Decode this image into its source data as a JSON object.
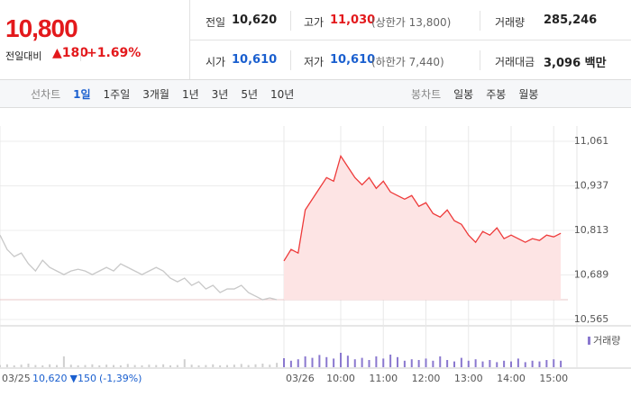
{
  "quote": {
    "price": "10,800",
    "change_label": "전일대비",
    "change": "▲180",
    "change_pct": "+1.69%"
  },
  "stats": {
    "prev": {
      "label": "전일",
      "value": "10,620"
    },
    "high": {
      "label": "고가",
      "value": "11,030",
      "note": "(상한가 13,800)"
    },
    "volume": {
      "label": "거래량",
      "value": "285,246"
    },
    "open": {
      "label": "시가",
      "value": "10,610"
    },
    "low": {
      "label": "저가",
      "value": "10,610",
      "note": "(하한가 7,440)"
    },
    "amount": {
      "label": "거래대금",
      "value": "3,096 백만"
    }
  },
  "tabs": {
    "line_label": "선차트",
    "line": [
      "1일",
      "1주일",
      "3개월",
      "1년",
      "3년",
      "5년",
      "10년"
    ],
    "candle_label": "봉차트",
    "candle": [
      "일봉",
      "주봉",
      "월봉"
    ]
  },
  "chart_data": {
    "type": "line",
    "categories": [
      "03/25",
      null,
      null,
      null,
      null,
      null,
      null,
      null,
      null,
      null,
      null,
      null,
      null,
      null,
      null,
      null,
      null,
      null,
      null,
      null,
      null,
      null,
      null,
      null,
      null,
      null,
      null,
      null,
      null,
      null,
      null,
      null,
      null,
      null,
      null,
      null,
      null,
      null,
      null,
      null,
      "03/26",
      null,
      null,
      null,
      null,
      null,
      null,
      null,
      "10:00",
      null,
      null,
      null,
      null,
      null,
      "11:00",
      null,
      null,
      null,
      null,
      null,
      "12:00",
      null,
      null,
      null,
      null,
      null,
      "13:00",
      null,
      null,
      null,
      null,
      null,
      "14:00",
      null,
      null,
      null,
      null,
      null,
      "15:00",
      null
    ],
    "series": [
      {
        "color": "#c8c8c8",
        "values": [
          10800,
          10760,
          10740,
          10750,
          10720,
          10700,
          10730,
          10710,
          10700,
          10690,
          10700,
          10705,
          10700,
          10690,
          10700,
          10710,
          10700,
          10720,
          10710,
          10700,
          10690,
          10700,
          10710,
          10700,
          10680,
          10670,
          10680,
          10660,
          10670,
          10650,
          10660,
          10640,
          10650,
          10650,
          10660,
          10640,
          10630,
          10620,
          10625,
          10620,
          null,
          null,
          null,
          null,
          null,
          null,
          null,
          null,
          null,
          null,
          null,
          null,
          null,
          null,
          null,
          null,
          null,
          null,
          null,
          null,
          null,
          null,
          null,
          null,
          null,
          null,
          null,
          null,
          null,
          null,
          null,
          null,
          null,
          null,
          null,
          null,
          null,
          null,
          null,
          null
        ]
      },
      {
        "color": "#ee3a3a",
        "fill": "#fde4e4",
        "values": [
          null,
          null,
          null,
          null,
          null,
          null,
          null,
          null,
          null,
          null,
          null,
          null,
          null,
          null,
          null,
          null,
          null,
          null,
          null,
          null,
          null,
          null,
          null,
          null,
          null,
          null,
          null,
          null,
          null,
          null,
          null,
          null,
          null,
          null,
          null,
          null,
          null,
          null,
          null,
          null,
          10728,
          10760,
          10750,
          10870,
          10900,
          10930,
          10960,
          10950,
          11020,
          10990,
          10960,
          10940,
          10960,
          10930,
          10950,
          10920,
          10910,
          10900,
          10910,
          10880,
          10890,
          10860,
          10850,
          10870,
          10840,
          10830,
          10800,
          10780,
          10810,
          10800,
          10820,
          10790,
          10800,
          10790,
          10780,
          10790,
          10785,
          10800,
          10795,
          10805
        ]
      },
      {
        "color": "#cfcfcf",
        "axis": "y2",
        "values": [
          6,
          8,
          5,
          7,
          10,
          6,
          5,
          8,
          6,
          30,
          7,
          5,
          6,
          8,
          5,
          7,
          6,
          5,
          9,
          6,
          5,
          7,
          6,
          8,
          5,
          6,
          22,
          7,
          5,
          6,
          8,
          5,
          6,
          7,
          9,
          6,
          8,
          10,
          7,
          12,
          null,
          null,
          null,
          null,
          null,
          null,
          null,
          null,
          null,
          null,
          null,
          null,
          null,
          null,
          null,
          null,
          null,
          null,
          null,
          null,
          null,
          null,
          null,
          null,
          null,
          null,
          null,
          null,
          null,
          null,
          null,
          null,
          null,
          null,
          null,
          null,
          null,
          null,
          null,
          null
        ]
      },
      {
        "name": "거래량",
        "color": "#8a78cf",
        "axis": "y2",
        "values": [
          null,
          null,
          null,
          null,
          null,
          null,
          null,
          null,
          null,
          null,
          null,
          null,
          null,
          null,
          null,
          null,
          null,
          null,
          null,
          null,
          null,
          null,
          null,
          null,
          null,
          null,
          null,
          null,
          null,
          null,
          null,
          null,
          null,
          null,
          null,
          null,
          null,
          null,
          null,
          null,
          25,
          18,
          22,
          30,
          26,
          34,
          28,
          24,
          40,
          32,
          22,
          26,
          20,
          30,
          24,
          35,
          28,
          18,
          22,
          20,
          24,
          18,
          30,
          20,
          16,
          26,
          18,
          22,
          16,
          20,
          14,
          18,
          16,
          24,
          14,
          18,
          16,
          20,
          22,
          18
        ]
      }
    ],
    "ylim": [
      10565,
      11061
    ],
    "yticks": [
      {
        "value": 11061,
        "label": "11,061"
      },
      {
        "value": 10937,
        "label": "10,937"
      },
      {
        "value": 10813,
        "label": "10,813"
      },
      {
        "value": 10689,
        "label": "10,689"
      },
      {
        "value": 10565,
        "label": "10,565"
      }
    ],
    "y2lim": [
      0,
      100
    ],
    "reference": 10620,
    "grid": true,
    "annotation": {
      "close": "10,620",
      "change": "▼150",
      "pct": "(-1,39%)"
    }
  }
}
